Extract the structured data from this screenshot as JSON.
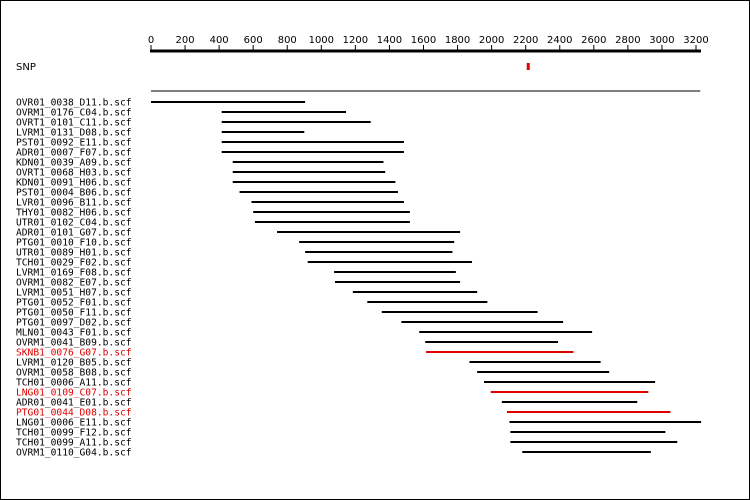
{
  "ruler": {
    "min": 0,
    "max": 3200,
    "ticks": [
      0,
      200,
      400,
      600,
      800,
      1000,
      1200,
      1400,
      1600,
      1800,
      2000,
      2200,
      2400,
      2600,
      2800,
      3000,
      3200
    ]
  },
  "colors": {
    "default": "#000000",
    "highlight": "#e00000"
  },
  "snp": {
    "label": "SNP",
    "position": 2215
  },
  "reference_span": {
    "start": 0,
    "end": 3225
  },
  "reads": [
    {
      "name": "OVR01_0038_D11.b.scf",
      "start": 0,
      "end": 905,
      "highlight": false
    },
    {
      "name": "OVRM1_0176_C04.b.scf",
      "start": 415,
      "end": 1145,
      "highlight": false
    },
    {
      "name": "OVRT1_0101_C11.b.scf",
      "start": 415,
      "end": 1290,
      "highlight": false
    },
    {
      "name": "LVRM1_0131_D08.b.scf",
      "start": 415,
      "end": 900,
      "highlight": false
    },
    {
      "name": "PST01_0092_E11.b.scf",
      "start": 415,
      "end": 1485,
      "highlight": false
    },
    {
      "name": "ADR01_0007_F07.b.scf",
      "start": 415,
      "end": 1485,
      "highlight": false
    },
    {
      "name": "KDN01_0039_A09.b.scf",
      "start": 480,
      "end": 1365,
      "highlight": false
    },
    {
      "name": "OVRT1_0068_H03.b.scf",
      "start": 480,
      "end": 1375,
      "highlight": false
    },
    {
      "name": "KDN01_0091_H06.b.scf",
      "start": 480,
      "end": 1435,
      "highlight": false
    },
    {
      "name": "PST01_0004_B06.b.scf",
      "start": 520,
      "end": 1450,
      "highlight": false
    },
    {
      "name": "LVR01_0096_B11.b.scf",
      "start": 590,
      "end": 1485,
      "highlight": false
    },
    {
      "name": "THY01_0082_H06.b.scf",
      "start": 600,
      "end": 1520,
      "highlight": false
    },
    {
      "name": "UTR01_0102_C04.b.scf",
      "start": 610,
      "end": 1520,
      "highlight": false
    },
    {
      "name": "ADR01_0101_G07.b.scf",
      "start": 740,
      "end": 1815,
      "highlight": false
    },
    {
      "name": "PTG01_0010_F10.b.scf",
      "start": 870,
      "end": 1780,
      "highlight": false
    },
    {
      "name": "UTR01_0089_H01.b.scf",
      "start": 905,
      "end": 1770,
      "highlight": false
    },
    {
      "name": "TCH01_0029_F02.b.scf",
      "start": 920,
      "end": 1885,
      "highlight": false
    },
    {
      "name": "LVRM1_0169_F08.b.scf",
      "start": 1075,
      "end": 1790,
      "highlight": false
    },
    {
      "name": "OVRM1_0082_E07.b.scf",
      "start": 1080,
      "end": 1815,
      "highlight": false
    },
    {
      "name": "LVRM1_0051_H07.b.scf",
      "start": 1185,
      "end": 1915,
      "highlight": false
    },
    {
      "name": "PTG01_0052_F01.b.scf",
      "start": 1270,
      "end": 1975,
      "highlight": false
    },
    {
      "name": "PTG01_0050_F11.b.scf",
      "start": 1355,
      "end": 2270,
      "highlight": false
    },
    {
      "name": "PTG01_0097_D02.b.scf",
      "start": 1470,
      "end": 2420,
      "highlight": false
    },
    {
      "name": "MLN01_0043_F01.b.scf",
      "start": 1575,
      "end": 2590,
      "highlight": false
    },
    {
      "name": "OVRM1_0041_B09.b.scf",
      "start": 1610,
      "end": 2390,
      "highlight": false
    },
    {
      "name": "SKNB1_0076_G07.b.scf",
      "start": 1615,
      "end": 2480,
      "highlight": true
    },
    {
      "name": "LVRM1_0120_B05.b.scf",
      "start": 1870,
      "end": 2640,
      "highlight": false
    },
    {
      "name": "OVRM1_0058_B08.b.scf",
      "start": 1915,
      "end": 2690,
      "highlight": false
    },
    {
      "name": "TCH01_0006_A11.b.scf",
      "start": 1955,
      "end": 2960,
      "highlight": false
    },
    {
      "name": "LNG01_0109_C07.b.scf",
      "start": 1995,
      "end": 2920,
      "highlight": true
    },
    {
      "name": "ADR01_0041_E01.b.scf",
      "start": 2060,
      "end": 2855,
      "highlight": false
    },
    {
      "name": "PTG01_0044_D08.b.scf",
      "start": 2090,
      "end": 3050,
      "highlight": true
    },
    {
      "name": "LNG01_0006_E11.b.scf",
      "start": 2105,
      "end": 3230,
      "highlight": false
    },
    {
      "name": "TCH01_0099_F12.b.scf",
      "start": 2110,
      "end": 3020,
      "highlight": false
    },
    {
      "name": "TCH01_0099_A11.b.scf",
      "start": 2110,
      "end": 3090,
      "highlight": false
    },
    {
      "name": "OVRM1_0110_G04.b.scf",
      "start": 2180,
      "end": 2935,
      "highlight": false
    }
  ]
}
